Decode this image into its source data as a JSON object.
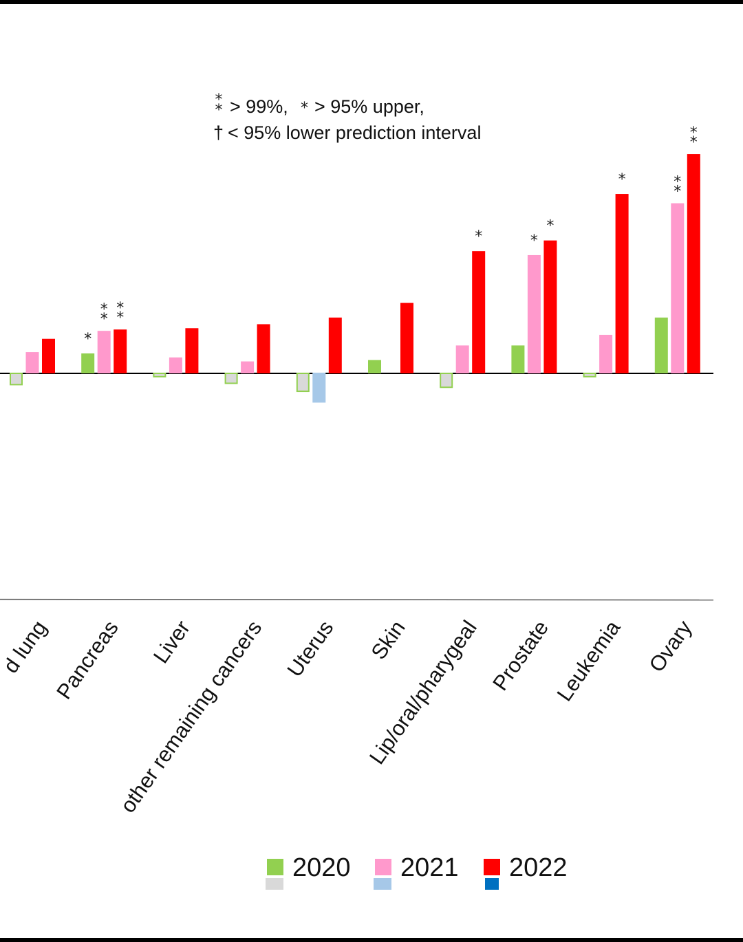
{
  "chart_data": {
    "type": "bar",
    "categories": [
      "d lung",
      "Pancreas",
      "Liver",
      "other remaining cancers",
      "Uterus",
      "Skin",
      "Lip/oral/pharygeal",
      "Prostate",
      "Leukemia",
      "Ovary"
    ],
    "series": [
      {
        "name": "2020",
        "values": [
          -0.09,
          0.15,
          -0.03,
          -0.08,
          -0.14,
          0.1,
          -0.11,
          0.21,
          -0.03,
          0.42
        ],
        "significance": [
          "",
          "*",
          "",
          "",
          "",
          "",
          "",
          "",
          "",
          ""
        ]
      },
      {
        "name": "2021",
        "values": [
          0.16,
          0.32,
          0.12,
          0.09,
          -0.22,
          0.0,
          0.21,
          0.89,
          0.29,
          1.28
        ],
        "significance": [
          "",
          "**",
          "",
          "",
          "",
          "",
          "",
          "*",
          "",
          "**"
        ]
      },
      {
        "name": "2022",
        "values": [
          0.26,
          0.33,
          0.34,
          0.37,
          0.42,
          0.53,
          0.92,
          1.0,
          1.35,
          1.65
        ],
        "significance": [
          "",
          "**",
          "",
          "",
          "",
          "",
          "*",
          "*",
          "*",
          "**"
        ]
      }
    ],
    "note": {
      "line1_sig99": "> 99%,",
      "line1_sig95": "> 95% upper,",
      "line2": "< 95% lower prediction interval",
      "dagger": "†",
      "star": "*"
    },
    "legend": [
      "2020",
      "2021",
      "2022"
    ],
    "colors": {
      "2020": {
        "positive": "#92d050",
        "negative": "#d9d9d9",
        "negative_border": "#92d050"
      },
      "2021": {
        "positive": "#ff99cc",
        "negative": "#a6c8e8",
        "negative_border": "#a6c8e8"
      },
      "2022": {
        "positive": "#ff0000",
        "negative": "#0070c0",
        "negative_border": "#0070c0"
      }
    },
    "ylim": [
      -1.7,
      2.05
    ],
    "xlabel": "",
    "ylabel": ""
  }
}
